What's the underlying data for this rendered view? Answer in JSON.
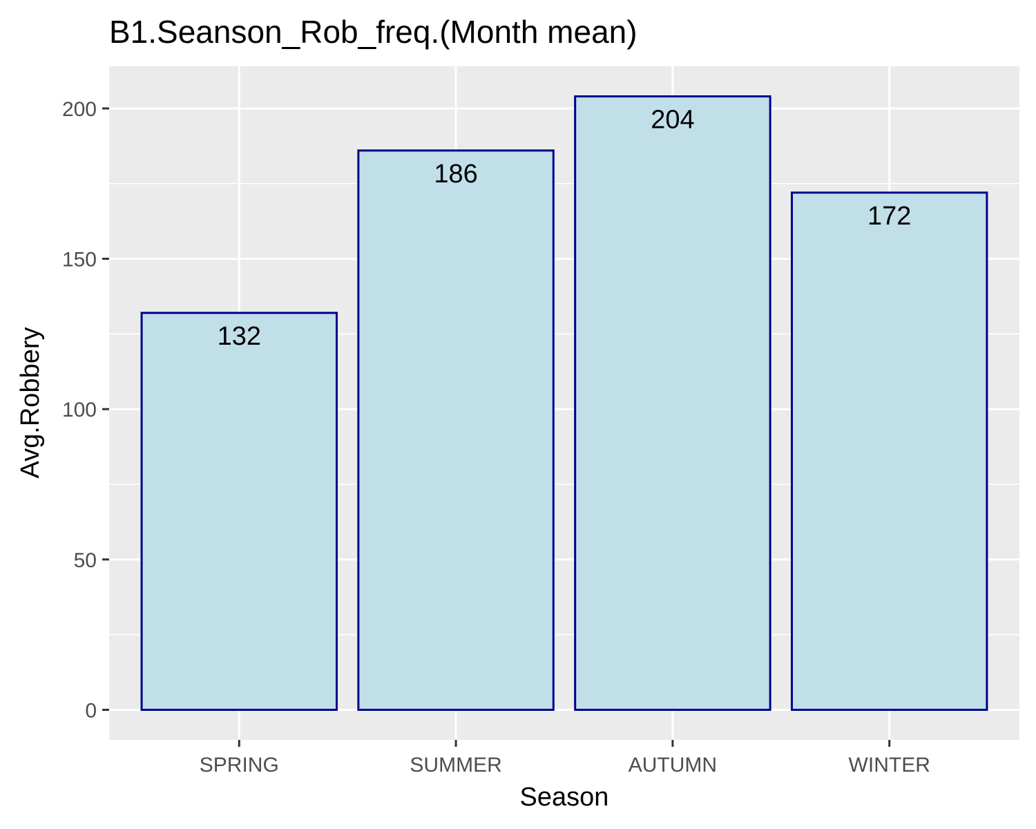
{
  "chart_data": {
    "type": "bar",
    "title": "B1.Seanson_Rob_freq.(Month mean)",
    "xlabel": "Season",
    "ylabel": "Avg.Robbery",
    "categories": [
      "SPRING",
      "SUMMER",
      "AUTUMN",
      "WINTER"
    ],
    "values": [
      132,
      186,
      204,
      172
    ],
    "data_labels": [
      "132",
      "186",
      "204",
      "172"
    ],
    "yticks": [
      0,
      50,
      100,
      150,
      200
    ],
    "ytick_labels": [
      "0",
      "50",
      "100",
      "150",
      "200"
    ],
    "ylim": [
      -10,
      214
    ],
    "grid": true,
    "colors": {
      "panel_background": "#ebebeb",
      "grid": "#ffffff",
      "bar_fill": "#c1dfe9",
      "bar_stroke": "#00008b",
      "tick": "#333333"
    }
  }
}
